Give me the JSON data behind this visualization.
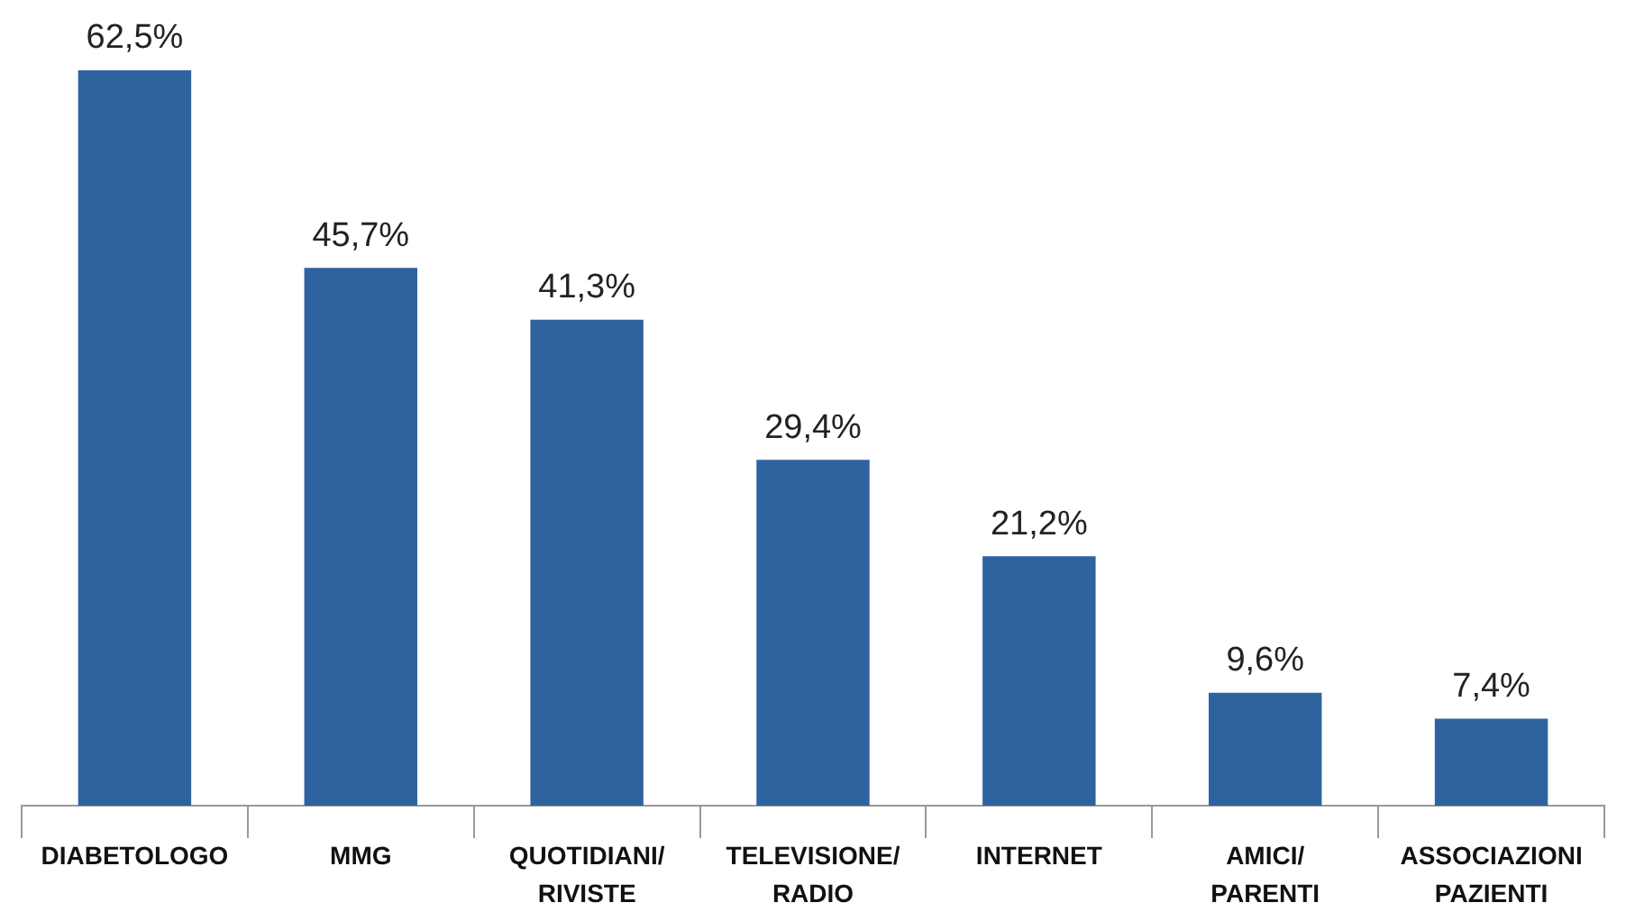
{
  "chart_data": {
    "type": "bar",
    "categories": [
      "DIABETOLOGO",
      "MMG",
      "QUOTIDIANI/ RIVISTE",
      "TELEVISIONE/ RADIO",
      "INTERNET",
      "AMICI/ PARENTI",
      "ASSOCIAZIONI PAZIENTI"
    ],
    "values": [
      62.5,
      45.7,
      41.3,
      29.4,
      21.2,
      9.6,
      7.4
    ],
    "value_labels": [
      "62,5%",
      "45,7%",
      "41,3%",
      "29,4%",
      "21,2%",
      "9,6%",
      "7,4%"
    ],
    "color": "#2e63a0",
    "ylim": [
      0,
      62.5
    ],
    "grid": false,
    "legend": false
  }
}
